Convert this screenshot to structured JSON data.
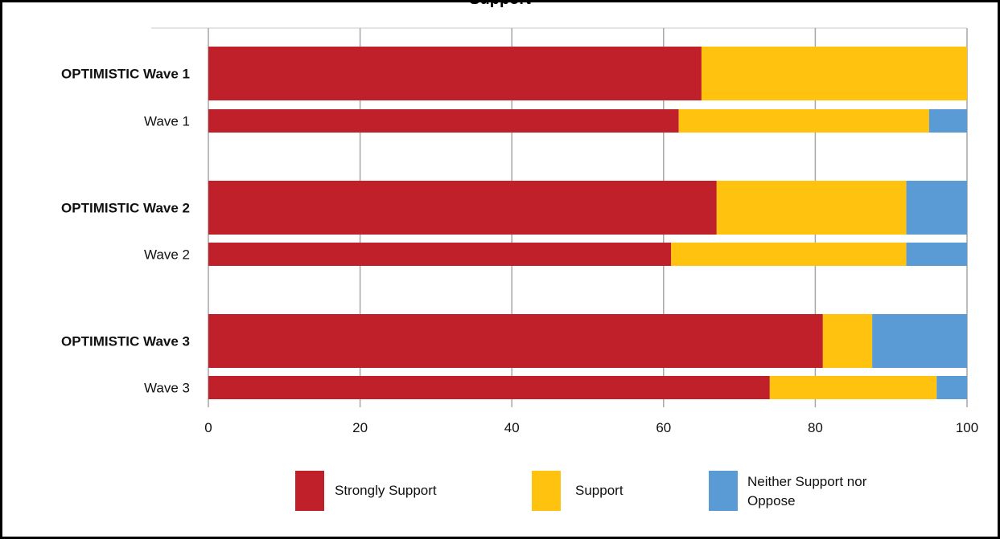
{
  "chart_data": {
    "type": "bar",
    "orientation": "horizontal",
    "stacked": true,
    "title": "Support",
    "categories": [
      "OPTIMISTIC Wave 1",
      "Wave 1",
      "OPTIMISTIC Wave 2",
      "Wave 2",
      "OPTIMISTIC Wave 3",
      "Wave 3"
    ],
    "bold_categories": [
      "OPTIMISTIC Wave 1",
      "OPTIMISTIC Wave 2",
      "OPTIMISTIC Wave 3"
    ],
    "series": [
      {
        "name": "Strongly Support",
        "color": "#c0202a",
        "values": [
          65,
          62,
          67,
          61,
          81,
          74
        ]
      },
      {
        "name": "Support",
        "color": "#ffc20e",
        "values": [
          35,
          33,
          25,
          31,
          6.5,
          22
        ]
      },
      {
        "name": "Neither Support nor Oppose",
        "color": "#5b9bd5",
        "values": [
          0,
          5,
          8,
          8,
          12.5,
          4
        ]
      }
    ],
    "xlim": [
      0,
      100
    ],
    "xticks": [
      0,
      20,
      40,
      60,
      80,
      100
    ],
    "grid": true,
    "legend": "bottom"
  }
}
